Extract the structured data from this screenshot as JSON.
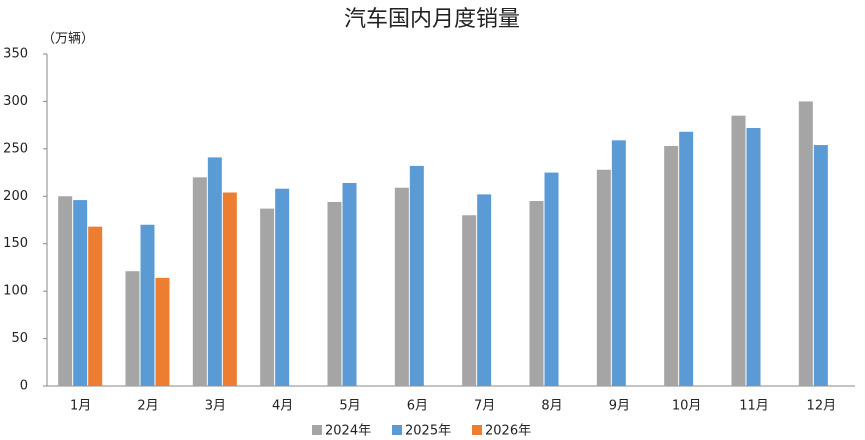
{
  "chart_data": {
    "type": "bar",
    "title": "汽车国内月度销量",
    "y_label": "（万辆）",
    "categories": [
      "1月",
      "2月",
      "3月",
      "4月",
      "5月",
      "6月",
      "7月",
      "8月",
      "9月",
      "10月",
      "11月",
      "12月"
    ],
    "series": [
      {
        "name": "2024年",
        "color": "#a5a5a5",
        "values": [
          200,
          121,
          220,
          187,
          194,
          209,
          180,
          195,
          228,
          253,
          285,
          300
        ]
      },
      {
        "name": "2025年",
        "color": "#5b9bd5",
        "values": [
          196,
          170,
          241,
          208,
          214,
          232,
          202,
          225,
          259,
          268,
          272,
          254
        ]
      },
      {
        "name": "2026年",
        "color": "#ed7d31",
        "values": [
          168,
          114,
          204,
          null,
          null,
          null,
          null,
          null,
          null,
          null,
          null,
          null
        ]
      }
    ],
    "ylim": [
      0,
      350
    ],
    "yticks": [
      0,
      50,
      100,
      150,
      200,
      250,
      300,
      350
    ],
    "grid": false,
    "legend": "bottom"
  }
}
